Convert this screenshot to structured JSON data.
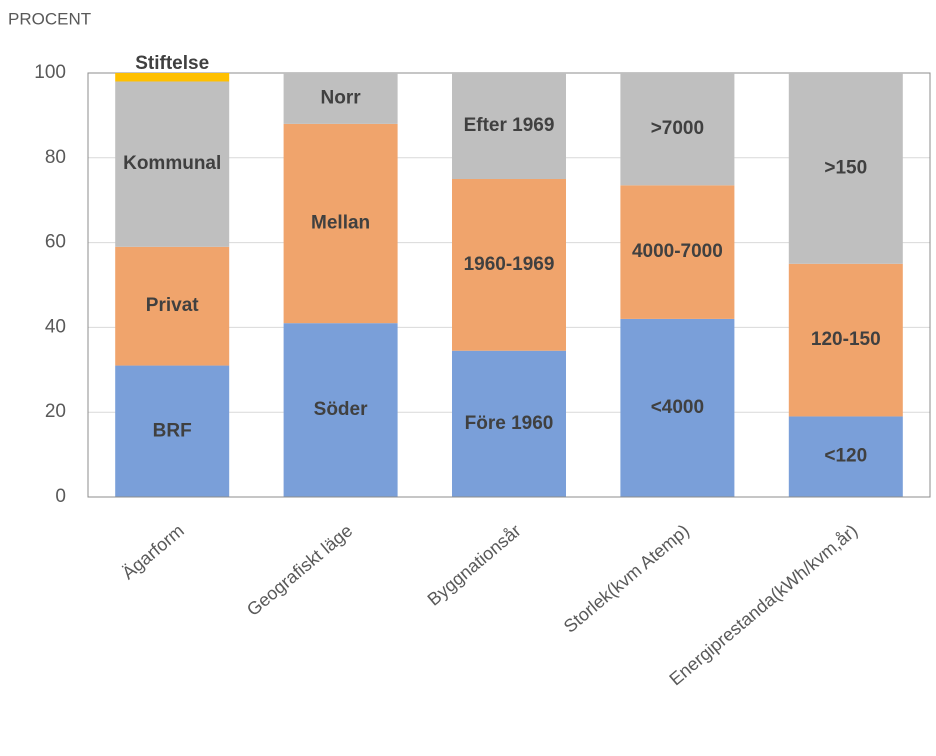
{
  "chart_data": {
    "type": "stacked-bar",
    "y_label": "PROCENT",
    "categories": [
      "Ägarform",
      "Geografiskt läge",
      "Byggnationsår",
      "Storlek(kvm Atemp)",
      "Energiprestanda(kWh/kvm,år)"
    ],
    "segments": [
      [
        {
          "name": "BRF",
          "value": 31,
          "color": "#7a9fd9"
        },
        {
          "name": "Privat",
          "value": 28,
          "color": "#f0a46c"
        },
        {
          "name": "Kommunal",
          "value": 39,
          "color": "#bfbfbf"
        },
        {
          "name": "Stiftelse",
          "value": 2,
          "color": "#ffc000"
        }
      ],
      [
        {
          "name": "Söder",
          "value": 41,
          "color": "#7a9fd9"
        },
        {
          "name": "Mellan",
          "value": 47,
          "color": "#f0a46c"
        },
        {
          "name": "Norr",
          "value": 12,
          "color": "#bfbfbf"
        }
      ],
      [
        {
          "name": "Före 1960",
          "value": 34.5,
          "color": "#7a9fd9"
        },
        {
          "name": "1960-1969",
          "value": 40.5,
          "color": "#f0a46c"
        },
        {
          "name": "Efter 1969",
          "value": 25,
          "color": "#bfbfbf"
        }
      ],
      [
        {
          "name": "<4000",
          "value": 42,
          "color": "#7a9fd9"
        },
        {
          "name": "4000-7000",
          "value": 31.5,
          "color": "#f0a46c"
        },
        {
          "name": ">7000",
          "value": 26.5,
          "color": "#bfbfbf"
        }
      ],
      [
        {
          "name": "<120",
          "value": 19,
          "color": "#7a9fd9"
        },
        {
          "name": "120-150",
          "value": 36,
          "color": "#f0a46c"
        },
        {
          "name": ">150",
          "value": 45,
          "color": "#bfbfbf"
        }
      ]
    ],
    "ylim": [
      0,
      100
    ],
    "yticks": [
      0,
      20,
      40,
      60,
      80,
      100
    ],
    "grid": true
  }
}
